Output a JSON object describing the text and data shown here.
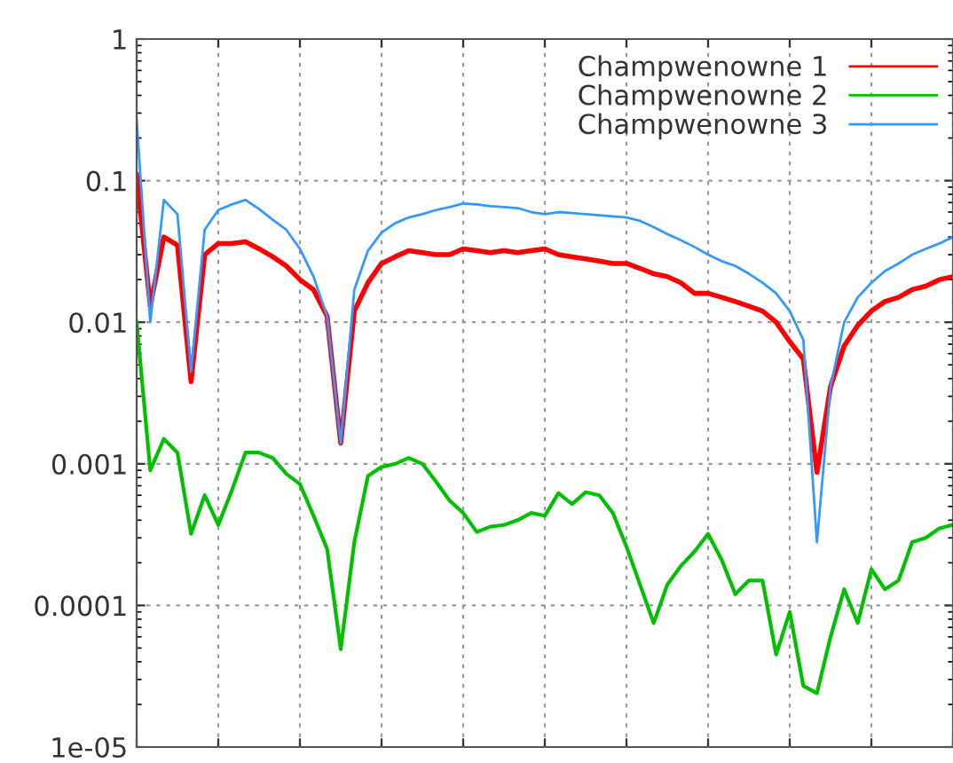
{
  "chart_data": {
    "type": "line",
    "log": "y",
    "grid": true,
    "legend": "top right",
    "tick_labels": "y",
    "marker": "none",
    "line_style": "solid",
    "categories": [
      null,
      null,
      null,
      null,
      null,
      null,
      null,
      null,
      null,
      null,
      null,
      null,
      null,
      null,
      null,
      null,
      null,
      null,
      null,
      null,
      null,
      null,
      null,
      null,
      null,
      null,
      null,
      null,
      null,
      null,
      null,
      null,
      null,
      null,
      null,
      null,
      null,
      null,
      null,
      null,
      null,
      null,
      null,
      null,
      null,
      null,
      null,
      null,
      null,
      null,
      null,
      null,
      null,
      null,
      null,
      null,
      null,
      null,
      null,
      null,
      null
    ],
    "ylim": [
      1e-05,
      1
    ],
    "yticks": [
      1e-05,
      0.0001,
      0.001,
      0.01,
      0.1,
      1
    ],
    "series": [
      {
        "name": "Champwenowne 1",
        "color": "#ff0000",
        "values": [
          0.11,
          0.013,
          0.04,
          0.035,
          0.0038,
          0.03,
          0.036,
          0.036,
          0.037,
          0.033,
          0.029,
          0.025,
          0.02,
          0.017,
          0.011,
          0.0014,
          0.012,
          0.019,
          0.026,
          0.029,
          0.032,
          0.031,
          0.03,
          0.03,
          0.033,
          0.032,
          0.031,
          0.032,
          0.031,
          0.032,
          0.033,
          0.03,
          0.029,
          0.028,
          0.027,
          0.026,
          0.026,
          0.024,
          0.022,
          0.021,
          0.019,
          0.016,
          0.016,
          0.015,
          0.014,
          0.013,
          0.012,
          0.01,
          0.0073,
          0.0055,
          0.00087,
          0.0035,
          0.0068,
          0.0095,
          0.012,
          0.014,
          0.015,
          0.017,
          0.018,
          0.02,
          0.021
        ]
      },
      {
        "name": "Champwenowne 2",
        "color": "#00c000",
        "values": [
          0.01,
          0.0009,
          0.0015,
          0.0012,
          0.00032,
          0.0006,
          0.00037,
          0.00065,
          0.0012,
          0.0012,
          0.0011,
          0.00085,
          0.00072,
          0.00043,
          0.00025,
          4.9e-05,
          0.00028,
          0.00082,
          0.00095,
          0.001,
          0.0011,
          0.001,
          0.00075,
          0.00055,
          0.00045,
          0.00033,
          0.00036,
          0.00037,
          0.0004,
          0.00045,
          0.00043,
          0.00062,
          0.00052,
          0.00063,
          0.0006,
          0.00045,
          0.00026,
          0.00014,
          7.5e-05,
          0.00014,
          0.00019,
          0.00024,
          0.00032,
          0.00021,
          0.00012,
          0.00015,
          0.00015,
          4.5e-05,
          9e-05,
          2.7e-05,
          2.4e-05,
          6e-05,
          0.00013,
          7.5e-05,
          0.00018,
          0.00013,
          0.00015,
          0.00028,
          0.0003,
          0.00035,
          0.00037
        ]
      },
      {
        "name": "Champwenowne 3",
        "color": "#3399ff",
        "values": [
          0.27,
          0.01,
          0.073,
          0.058,
          0.0045,
          0.045,
          0.062,
          0.068,
          0.073,
          0.063,
          0.053,
          0.045,
          0.033,
          0.021,
          0.011,
          0.0014,
          0.017,
          0.032,
          0.043,
          0.05,
          0.055,
          0.058,
          0.062,
          0.065,
          0.069,
          0.068,
          0.066,
          0.065,
          0.064,
          0.06,
          0.058,
          0.06,
          0.059,
          0.058,
          0.057,
          0.056,
          0.055,
          0.052,
          0.047,
          0.042,
          0.038,
          0.034,
          0.03,
          0.027,
          0.025,
          0.022,
          0.019,
          0.016,
          0.012,
          0.0075,
          0.00028,
          0.0035,
          0.01,
          0.015,
          0.019,
          0.023,
          0.026,
          0.03,
          0.033,
          0.036,
          0.04
        ]
      }
    ]
  }
}
